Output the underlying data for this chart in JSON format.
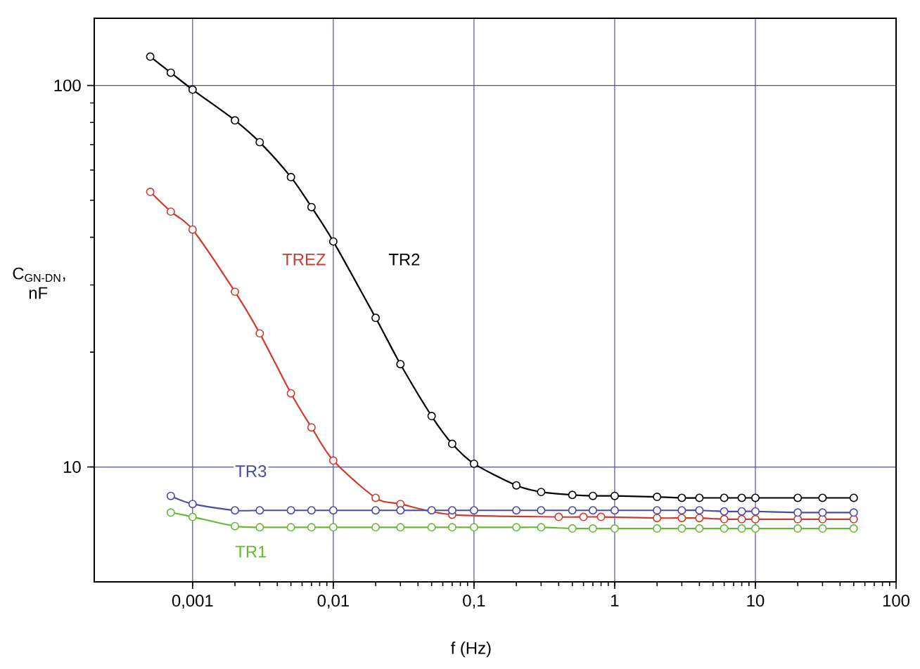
{
  "chart_data": {
    "type": "line",
    "xlabel": "f (Hz)",
    "ylabel": "C$_{GN-DN}$, nF",
    "x": [
      0.0005,
      0.0007,
      0.001,
      0.002,
      0.003,
      0.005,
      0.007,
      0.01,
      0.02,
      0.03,
      0.05,
      0.07,
      0.1,
      0.2,
      0.3,
      0.5,
      0.7,
      1,
      2,
      3,
      4,
      6,
      8,
      10,
      20,
      30,
      50
    ],
    "series": [
      {
        "name": "TR2",
        "color": "#000000",
        "values": [
          119,
          108,
          97.5,
          81,
          71,
          57.5,
          48,
          39,
          24.6,
          18.6,
          13.6,
          11.5,
          10.2,
          8.95,
          8.6,
          8.45,
          8.4,
          8.4,
          8.35,
          8.3,
          8.3,
          8.3,
          8.3,
          8.3,
          8.3,
          8.3,
          8.3
        ]
      },
      {
        "name": "TREZ",
        "color": "#d03a2e",
        "x": [
          0.0005,
          0.0007,
          0.001,
          0.002,
          0.003,
          0.005,
          0.007,
          0.01,
          0.02,
          0.03,
          0.05,
          0.07,
          0.4,
          0.6,
          0.8,
          2,
          3,
          4,
          6,
          8,
          10,
          20,
          30,
          50
        ],
        "values": [
          52.6,
          46.7,
          41.9,
          28.8,
          22.4,
          15.6,
          12.7,
          10.4,
          8.3,
          8.0,
          null,
          7.5,
          7.4,
          7.4,
          7.4,
          7.35,
          7.35,
          7.35,
          7.3,
          7.3,
          7.3,
          7.3,
          7.3,
          7.3
        ]
      },
      {
        "name": "TR3",
        "color": "#4a4aa8",
        "values": [
          null,
          8.4,
          8.0,
          7.7,
          7.7,
          7.7,
          7.7,
          7.7,
          7.7,
          7.7,
          7.7,
          7.7,
          7.7,
          7.7,
          7.7,
          7.7,
          7.7,
          7.7,
          7.7,
          7.7,
          7.7,
          7.65,
          7.65,
          7.65,
          7.6,
          7.6,
          7.6
        ]
      },
      {
        "name": "TR1",
        "color": "#66b832",
        "values": [
          null,
          7.6,
          7.4,
          7.0,
          6.95,
          6.95,
          6.95,
          6.95,
          6.95,
          6.95,
          6.95,
          6.95,
          6.95,
          6.95,
          6.95,
          6.9,
          6.9,
          6.9,
          6.9,
          6.9,
          6.9,
          6.9,
          6.9,
          6.9,
          6.9,
          6.9,
          6.9
        ]
      }
    ],
    "log": "xy",
    "xlim": [
      0.0002,
      100
    ],
    "ylim": [
      5,
      150
    ],
    "xticks": [
      {
        "value": 0.001,
        "label": "0,001"
      },
      {
        "value": 0.01,
        "label": "0,01"
      },
      {
        "value": 0.1,
        "label": "0,1"
      },
      1,
      10,
      100
    ],
    "yticks": [
      10,
      100
    ],
    "grid": true,
    "marker": "circle",
    "line_style": "solid"
  }
}
